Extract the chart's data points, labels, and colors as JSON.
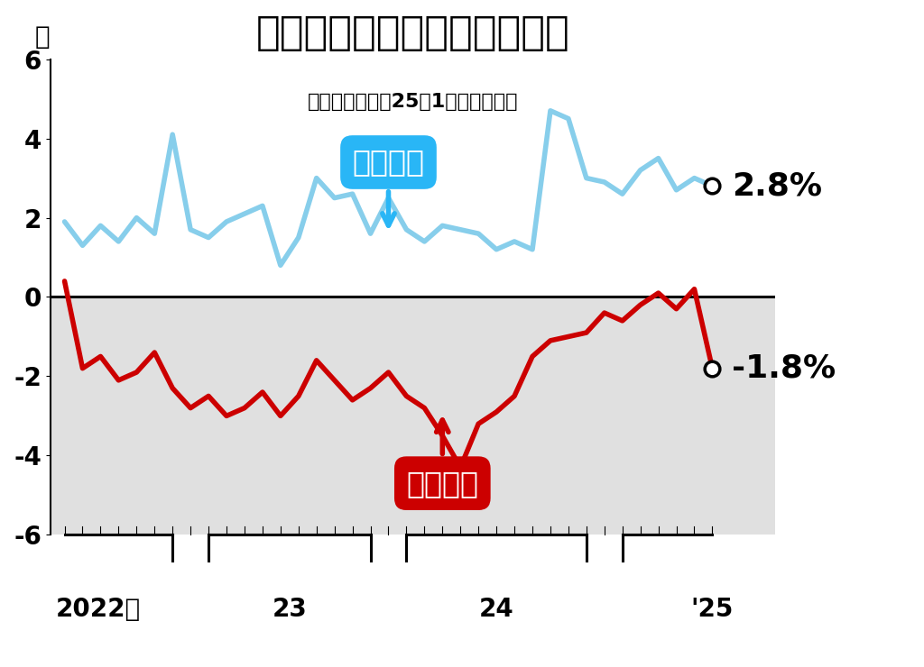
{
  "title": "名目賃金と実質賃金の増減率",
  "subtitle": "（前年同月比、25年1月は速報値）",
  "ylabel_unit": "％",
  "ylim": [
    -6,
    6
  ],
  "yticks": [
    -6,
    -4,
    -2,
    0,
    2,
    4,
    6
  ],
  "background_color": "#ffffff",
  "below_zero_color": "#e0e0e0",
  "nominal_color": "#87CEEB",
  "real_color": "#cc0000",
  "nominal_label": "名目賃金",
  "real_label": "実質賃金",
  "nominal_annotation": "2.8%",
  "real_annotation": "-1.8%",
  "nominal_wages": [
    1.9,
    1.3,
    1.8,
    1.4,
    2.0,
    1.6,
    4.1,
    1.7,
    1.5,
    1.9,
    2.1,
    2.3,
    0.8,
    1.5,
    3.0,
    2.5,
    2.6,
    1.6,
    2.5,
    1.7,
    1.4,
    1.8,
    1.7,
    1.6,
    1.2,
    1.4,
    1.2,
    4.7,
    4.5,
    3.0,
    2.9,
    2.6,
    3.2,
    3.5,
    2.7,
    3.0,
    2.8
  ],
  "real_wages": [
    0.4,
    -1.8,
    -1.5,
    -2.1,
    -1.9,
    -1.4,
    -2.3,
    -2.8,
    -2.5,
    -3.0,
    -2.8,
    -2.4,
    -3.0,
    -2.5,
    -1.6,
    -2.1,
    -2.6,
    -2.3,
    -1.9,
    -2.5,
    -2.8,
    -3.5,
    -4.3,
    -3.2,
    -2.9,
    -2.5,
    -1.5,
    -1.1,
    -1.0,
    -0.9,
    -0.4,
    -0.6,
    -0.2,
    0.1,
    -0.3,
    0.2,
    -1.8
  ],
  "title_fontsize": 32,
  "subtitle_fontsize": 16,
  "label_fontsize": 24,
  "tick_fontsize": 20,
  "annotation_fontsize": 26
}
